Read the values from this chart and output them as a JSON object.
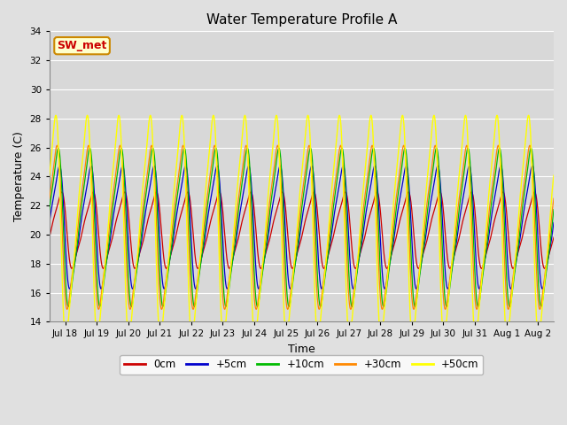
{
  "title": "Water Temperature Profile A",
  "xlabel": "Time",
  "ylabel": "Temperature (C)",
  "ylim": [
    14,
    34
  ],
  "yticks": [
    14,
    16,
    18,
    20,
    22,
    24,
    26,
    28,
    30,
    32,
    34
  ],
  "fig_bg_color": "#e0e0e0",
  "plot_bg_color": "#d8d8d8",
  "grid_color": "#ffffff",
  "series": [
    {
      "label": "0cm",
      "color": "#cc0000",
      "phase": 0.55,
      "amp": 2.8,
      "mean": 20.3,
      "amp2": 0.0
    },
    {
      "label": "+5cm",
      "color": "#0000cc",
      "phase": 0.48,
      "amp": 4.5,
      "mean": 20.5,
      "amp2": 0.0
    },
    {
      "label": "+10cm",
      "color": "#00bb00",
      "phase": 0.44,
      "amp": 5.8,
      "mean": 20.5,
      "amp2": 0.0
    },
    {
      "label": "+30cm",
      "color": "#ff8800",
      "phase": 0.4,
      "amp": 6.0,
      "mean": 20.5,
      "amp2": 0.0
    },
    {
      "label": "+50cm",
      "color": "#ffff00",
      "phase": 0.36,
      "amp": 8.2,
      "mean": 20.5,
      "amp2": 0.0
    }
  ],
  "legend_label": "SW_met",
  "legend_facecolor": "#ffffcc",
  "legend_edgecolor": "#cc8800",
  "legend_text_color": "#cc0000",
  "start_day": 17.5,
  "n_days": 16.0,
  "tick_labels": [
    "Jul 18",
    "Jul 19",
    "Jul 20",
    "Jul 21",
    "Jul 22",
    "Jul 23",
    "Jul 24",
    "Jul 25",
    "Jul 26",
    "Jul 27",
    "Jul 28",
    "Jul 29",
    "Jul 30",
    "Jul 31",
    "Aug 1",
    "Aug 2"
  ],
  "tick_positions": [
    18,
    19,
    20,
    21,
    22,
    23,
    24,
    25,
    26,
    27,
    28,
    29,
    30,
    31,
    32,
    33
  ]
}
